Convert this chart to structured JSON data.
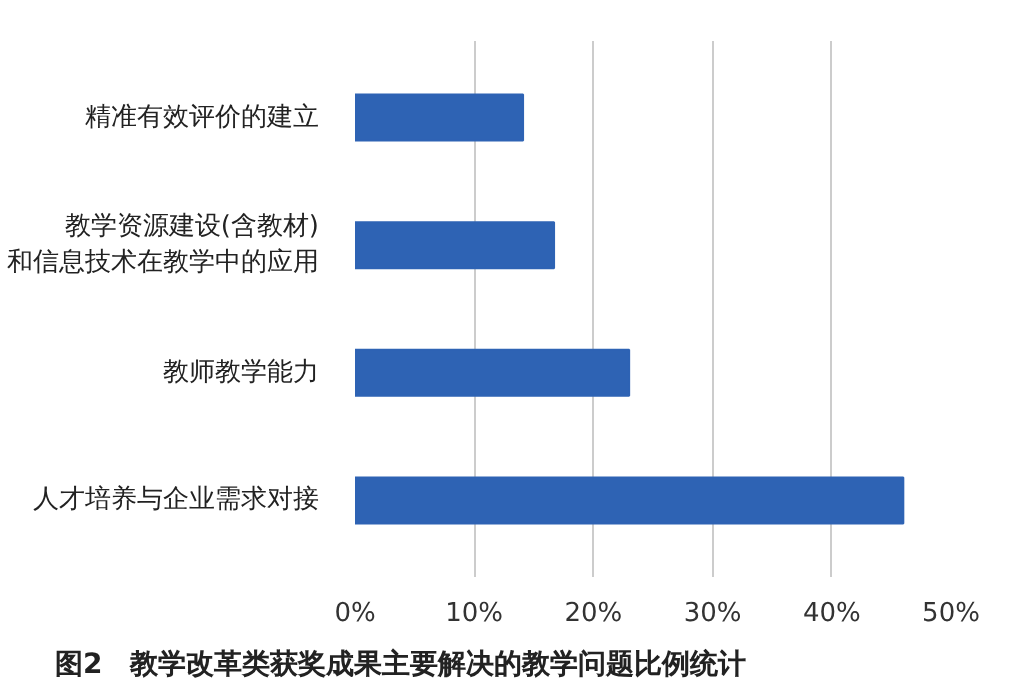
{
  "chart_data": {
    "type": "bar",
    "orientation": "horizontal",
    "title": "图2　教学改革类获奖成果主要解决的教学问题比例统计",
    "categories": [
      "精准有效评价的建立",
      "教学资源建设(含教材)\n和信息技术在教学中的应用",
      "教师教学能力",
      "人才培养与企业需求对接"
    ],
    "values": [
      14.1,
      16.7,
      23.0,
      46.0
    ],
    "color": "#2e63b4",
    "xlim": [
      0,
      50
    ],
    "xticks": [
      {
        "value": 0,
        "label": "0%"
      },
      {
        "value": 10,
        "label": "10%"
      },
      {
        "value": 20,
        "label": "20%"
      },
      {
        "value": 30,
        "label": "30%"
      },
      {
        "value": 40,
        "label": "40%"
      },
      {
        "value": 50,
        "label": "50%"
      }
    ],
    "grid": "x"
  }
}
